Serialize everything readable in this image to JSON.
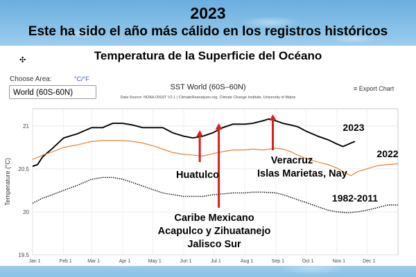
{
  "header": {
    "year": "2023",
    "subtitle": "Este ha sido el año más cálido en los registros históricos",
    "panel_title": "Temperatura de la Superficie del Océano"
  },
  "controls": {
    "choose_area_label": "Choose Area:",
    "unit_toggle": "°C/°F",
    "area_selected": "World (60S-60N)",
    "export_label": "Export Chart"
  },
  "chart_data": {
    "type": "line",
    "title": "SST World (60S–60N)",
    "subtitle": "Data Source: NOAA OISST V2.1 | ClimateReanalyzer.org, Climate Change Institute, University of Maine",
    "ylabel": "Temperature (°C)",
    "ylim": [
      19.5,
      21.2
    ],
    "yticks": [
      19.5,
      20,
      20.5,
      21
    ],
    "xlim": [
      0,
      365
    ],
    "xtick_labels": [
      "Jan 1",
      "Feb 1",
      "Mar 1",
      "Apr 1",
      "May 1",
      "Jun 1",
      "Jul 1",
      "Aug 1",
      "Sep 1",
      "Oct 1",
      "Nov 1",
      "Dec 1"
    ],
    "xtick_days": [
      0,
      31,
      59,
      90,
      120,
      151,
      181,
      212,
      243,
      273,
      304,
      334
    ],
    "grid": true,
    "series": [
      {
        "name": "2023",
        "color": "#000000",
        "style": "solid",
        "points": [
          [
            0,
            20.53
          ],
          [
            5,
            20.55
          ],
          [
            10,
            20.64
          ],
          [
            20,
            20.74
          ],
          [
            31,
            20.86
          ],
          [
            45,
            20.91
          ],
          [
            59,
            20.98
          ],
          [
            70,
            20.98
          ],
          [
            80,
            21.03
          ],
          [
            90,
            21.03
          ],
          [
            100,
            21.01
          ],
          [
            110,
            20.98
          ],
          [
            120,
            20.98
          ],
          [
            130,
            20.98
          ],
          [
            135,
            20.95
          ],
          [
            140,
            20.92
          ],
          [
            151,
            20.88
          ],
          [
            160,
            20.86
          ],
          [
            165,
            20.87
          ],
          [
            170,
            20.88
          ],
          [
            180,
            20.92
          ],
          [
            190,
            20.98
          ],
          [
            200,
            21.02
          ],
          [
            212,
            21.02
          ],
          [
            220,
            21.03
          ],
          [
            230,
            21.06
          ],
          [
            236,
            21.08
          ],
          [
            243,
            21.06
          ],
          [
            250,
            21.03
          ],
          [
            258,
            21.01
          ],
          [
            265,
            20.99
          ],
          [
            273,
            20.94
          ],
          [
            285,
            20.88
          ],
          [
            295,
            20.84
          ],
          [
            304,
            20.79
          ],
          [
            310,
            20.76
          ],
          [
            318,
            20.8
          ],
          [
            322,
            20.82
          ]
        ]
      },
      {
        "name": "2022",
        "color": "#e8731a",
        "style": "solid",
        "points": [
          [
            0,
            20.61
          ],
          [
            10,
            20.66
          ],
          [
            20,
            20.7
          ],
          [
            31,
            20.75
          ],
          [
            45,
            20.78
          ],
          [
            59,
            20.82
          ],
          [
            70,
            20.83
          ],
          [
            80,
            20.83
          ],
          [
            90,
            20.83
          ],
          [
            100,
            20.82
          ],
          [
            110,
            20.8
          ],
          [
            120,
            20.77
          ],
          [
            130,
            20.73
          ],
          [
            140,
            20.69
          ],
          [
            151,
            20.67
          ],
          [
            160,
            20.66
          ],
          [
            170,
            20.65
          ],
          [
            181,
            20.68
          ],
          [
            190,
            20.7
          ],
          [
            200,
            20.72
          ],
          [
            212,
            20.72
          ],
          [
            220,
            20.73
          ],
          [
            230,
            20.72
          ],
          [
            243,
            20.74
          ],
          [
            250,
            20.73
          ],
          [
            258,
            20.7
          ],
          [
            265,
            20.66
          ],
          [
            273,
            20.62
          ],
          [
            285,
            20.58
          ],
          [
            295,
            20.55
          ],
          [
            304,
            20.51
          ],
          [
            310,
            20.47
          ],
          [
            318,
            20.42
          ],
          [
            325,
            20.47
          ],
          [
            334,
            20.5
          ],
          [
            345,
            20.54
          ],
          [
            355,
            20.55
          ],
          [
            365,
            20.56
          ]
        ]
      },
      {
        "name": "1982-2011",
        "color": "#000000",
        "style": "dotted",
        "points": [
          [
            0,
            20.1
          ],
          [
            10,
            20.16
          ],
          [
            20,
            20.2
          ],
          [
            31,
            20.25
          ],
          [
            45,
            20.31
          ],
          [
            59,
            20.38
          ],
          [
            70,
            20.4
          ],
          [
            80,
            20.4
          ],
          [
            90,
            20.38
          ],
          [
            100,
            20.34
          ],
          [
            110,
            20.3
          ],
          [
            120,
            20.26
          ],
          [
            130,
            20.22
          ],
          [
            140,
            20.2
          ],
          [
            151,
            20.18
          ],
          [
            160,
            20.18
          ],
          [
            170,
            20.18
          ],
          [
            181,
            20.2
          ],
          [
            190,
            20.21
          ],
          [
            200,
            20.22
          ],
          [
            212,
            20.22
          ],
          [
            220,
            20.23
          ],
          [
            230,
            20.23
          ],
          [
            243,
            20.22
          ],
          [
            250,
            20.2
          ],
          [
            258,
            20.17
          ],
          [
            265,
            20.14
          ],
          [
            273,
            20.11
          ],
          [
            285,
            20.06
          ],
          [
            295,
            20.02
          ],
          [
            304,
            20.0
          ],
          [
            315,
            19.99
          ],
          [
            325,
            20.0
          ],
          [
            334,
            20.02
          ],
          [
            345,
            20.05
          ],
          [
            355,
            20.08
          ],
          [
            365,
            20.08
          ]
        ]
      }
    ],
    "series_labels": [
      "2023",
      "2022",
      "1982-2011"
    ],
    "annotations": [
      {
        "label": "Huatulco",
        "day": 167
      },
      {
        "label": "Caribe Mexicano\nAcapulco y Zihuatanejo\nJalisco Sur",
        "day": 186
      },
      {
        "label": "Veracruz\nIslas Marietas, Nay",
        "day": 240
      }
    ],
    "arrow_color": "#d42020"
  }
}
